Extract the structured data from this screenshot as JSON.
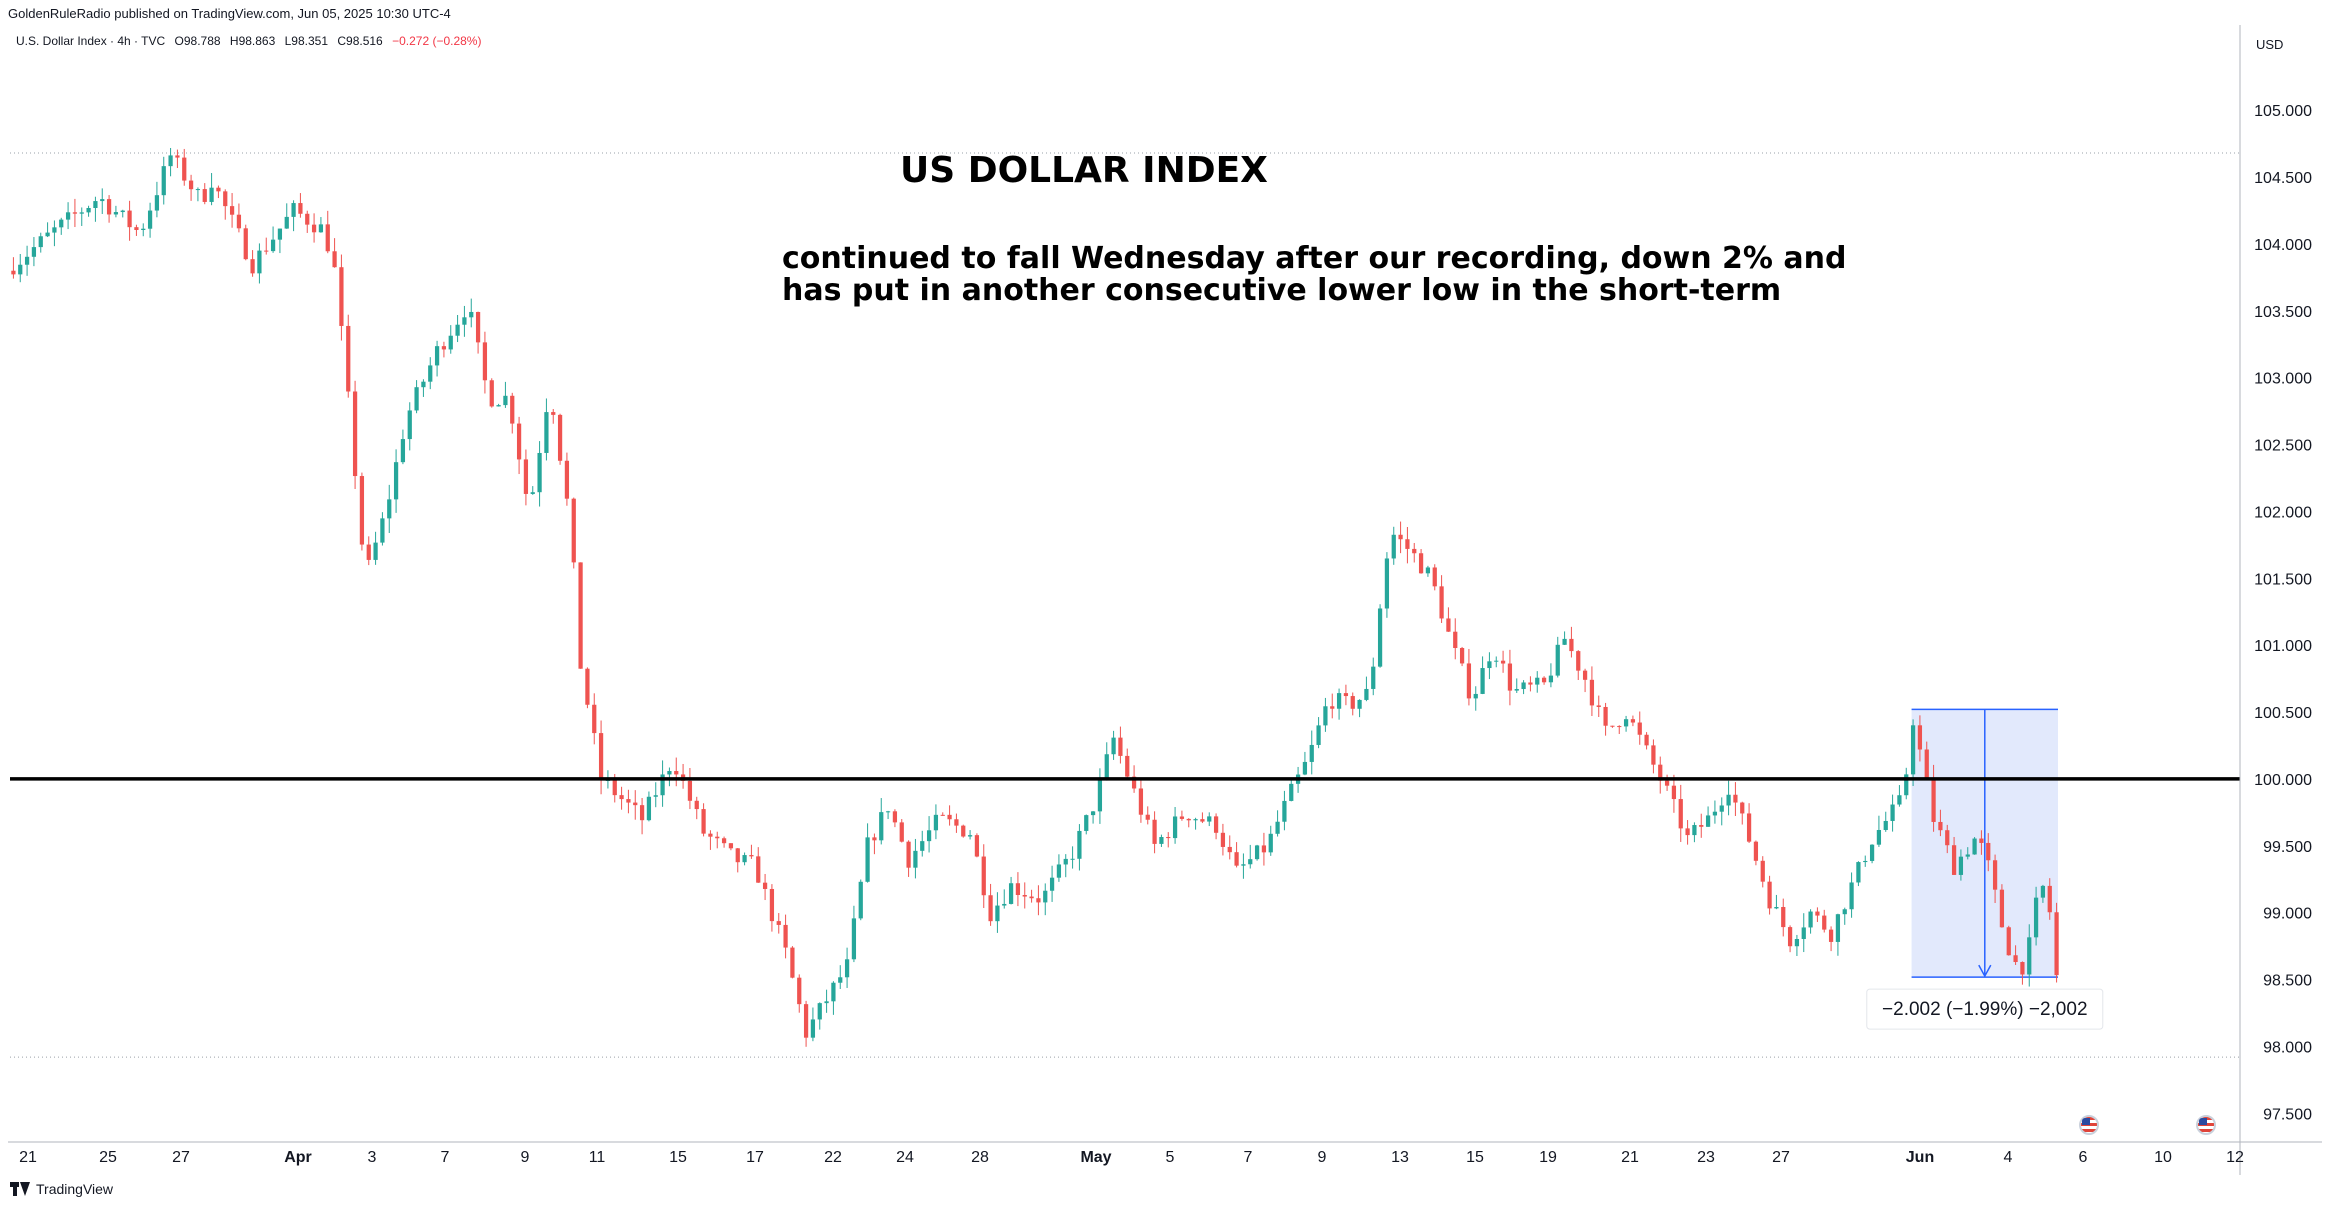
{
  "header": {
    "published_text": "GoldenRuleRadio published on TradingView.com, Jun 05, 2025 10:30 UTC-4",
    "symbol": "U.S. Dollar Index · 4h · TVC",
    "open": "O98.788",
    "high": "H98.863",
    "low": "L98.351",
    "close": "C98.516",
    "change": "−0.272 (−0.28%)"
  },
  "price_axis": {
    "currency": "USD",
    "ticks": [
      "105.000",
      "104.500",
      "104.000",
      "103.500",
      "103.000",
      "102.500",
      "102.000",
      "101.500",
      "101.000",
      "100.500",
      "100.000",
      "99.500",
      "99.000",
      "98.500",
      "98.000",
      "97.500"
    ]
  },
  "time_axis": {
    "ticks": [
      {
        "label": "21",
        "bold": false
      },
      {
        "label": "25",
        "bold": false
      },
      {
        "label": "27",
        "bold": false
      },
      {
        "label": "Apr",
        "bold": true
      },
      {
        "label": "3",
        "bold": false
      },
      {
        "label": "7",
        "bold": false
      },
      {
        "label": "9",
        "bold": false
      },
      {
        "label": "11",
        "bold": false
      },
      {
        "label": "15",
        "bold": false
      },
      {
        "label": "17",
        "bold": false
      },
      {
        "label": "22",
        "bold": false
      },
      {
        "label": "24",
        "bold": false
      },
      {
        "label": "28",
        "bold": false
      },
      {
        "label": "May",
        "bold": true
      },
      {
        "label": "5",
        "bold": false
      },
      {
        "label": "7",
        "bold": false
      },
      {
        "label": "9",
        "bold": false
      },
      {
        "label": "13",
        "bold": false
      },
      {
        "label": "15",
        "bold": false
      },
      {
        "label": "19",
        "bold": false
      },
      {
        "label": "21",
        "bold": false
      },
      {
        "label": "23",
        "bold": false
      },
      {
        "label": "27",
        "bold": false
      },
      {
        "label": "Jun",
        "bold": true
      },
      {
        "label": "4",
        "bold": false
      },
      {
        "label": "6",
        "bold": false
      },
      {
        "label": "10",
        "bold": false
      },
      {
        "label": "12",
        "bold": false
      }
    ]
  },
  "annotations": {
    "title": "US DOLLAR INDEX",
    "note_line1": "continued to fall Wednesday after our recording, down 2% and",
    "note_line2": "has put in another consecutive lower low in the short-term",
    "measure_label": "−2.002 (−1.99%) −2,002"
  },
  "footer": {
    "brand": "TradingView"
  },
  "colors": {
    "up": "#26a69a",
    "down": "#ef5350",
    "support_line": "#000000",
    "measure_fill": "#dbe4fb",
    "measure_line": "#2962ff"
  },
  "chart_data": {
    "type": "candlestick",
    "ylim": [
      97.3,
      105.6
    ],
    "support_level": 100.0,
    "range_high": 104.68,
    "range_low": 97.92,
    "measure": {
      "from": 100.52,
      "to": 98.518,
      "change": -2.002,
      "change_pct": -1.99
    },
    "anchors": [
      {
        "t": 0.0,
        "p": 103.8
      },
      {
        "t": 0.025,
        "p": 104.12
      },
      {
        "t": 0.045,
        "p": 104.35
      },
      {
        "t": 0.065,
        "p": 104.08
      },
      {
        "t": 0.08,
        "p": 104.66
      },
      {
        "t": 0.095,
        "p": 104.32
      },
      {
        "t": 0.1,
        "p": 104.48
      },
      {
        "t": 0.12,
        "p": 103.85
      },
      {
        "t": 0.14,
        "p": 104.25
      },
      {
        "t": 0.155,
        "p": 104.1
      },
      {
        "t": 0.16,
        "p": 103.8
      },
      {
        "t": 0.165,
        "p": 103.1
      },
      {
        "t": 0.175,
        "p": 101.5
      },
      {
        "t": 0.185,
        "p": 102.0
      },
      {
        "t": 0.195,
        "p": 102.7
      },
      {
        "t": 0.21,
        "p": 103.2
      },
      {
        "t": 0.225,
        "p": 103.55
      },
      {
        "t": 0.235,
        "p": 102.85
      },
      {
        "t": 0.245,
        "p": 102.85
      },
      {
        "t": 0.255,
        "p": 102.0
      },
      {
        "t": 0.265,
        "p": 102.95
      },
      {
        "t": 0.275,
        "p": 101.9
      },
      {
        "t": 0.28,
        "p": 100.85
      },
      {
        "t": 0.29,
        "p": 100.0
      },
      {
        "t": 0.3,
        "p": 99.85
      },
      {
        "t": 0.31,
        "p": 99.7
      },
      {
        "t": 0.325,
        "p": 100.15
      },
      {
        "t": 0.34,
        "p": 99.6
      },
      {
        "t": 0.355,
        "p": 99.4
      },
      {
        "t": 0.365,
        "p": 99.35
      },
      {
        "t": 0.38,
        "p": 98.7
      },
      {
        "t": 0.39,
        "p": 98.1
      },
      {
        "t": 0.4,
        "p": 98.35
      },
      {
        "t": 0.41,
        "p": 98.6
      },
      {
        "t": 0.42,
        "p": 99.5
      },
      {
        "t": 0.43,
        "p": 99.8
      },
      {
        "t": 0.44,
        "p": 99.4
      },
      {
        "t": 0.455,
        "p": 99.7
      },
      {
        "t": 0.47,
        "p": 99.6
      },
      {
        "t": 0.48,
        "p": 99.0
      },
      {
        "t": 0.49,
        "p": 99.2
      },
      {
        "t": 0.505,
        "p": 99.1
      },
      {
        "t": 0.52,
        "p": 99.45
      },
      {
        "t": 0.53,
        "p": 99.8
      },
      {
        "t": 0.54,
        "p": 100.3
      },
      {
        "t": 0.55,
        "p": 99.9
      },
      {
        "t": 0.56,
        "p": 99.5
      },
      {
        "t": 0.575,
        "p": 99.75
      },
      {
        "t": 0.59,
        "p": 99.65
      },
      {
        "t": 0.6,
        "p": 99.3
      },
      {
        "t": 0.615,
        "p": 99.5
      },
      {
        "t": 0.625,
        "p": 99.85
      },
      {
        "t": 0.635,
        "p": 100.15
      },
      {
        "t": 0.645,
        "p": 100.6
      },
      {
        "t": 0.655,
        "p": 100.55
      },
      {
        "t": 0.665,
        "p": 100.65
      },
      {
        "t": 0.67,
        "p": 101.3
      },
      {
        "t": 0.675,
        "p": 101.85
      },
      {
        "t": 0.685,
        "p": 101.7
      },
      {
        "t": 0.695,
        "p": 101.5
      },
      {
        "t": 0.705,
        "p": 101.0
      },
      {
        "t": 0.715,
        "p": 100.6
      },
      {
        "t": 0.725,
        "p": 101.0
      },
      {
        "t": 0.735,
        "p": 100.65
      },
      {
        "t": 0.75,
        "p": 100.7
      },
      {
        "t": 0.76,
        "p": 101.05
      },
      {
        "t": 0.77,
        "p": 100.75
      },
      {
        "t": 0.78,
        "p": 100.35
      },
      {
        "t": 0.79,
        "p": 100.5
      },
      {
        "t": 0.8,
        "p": 100.2
      },
      {
        "t": 0.81,
        "p": 99.9
      },
      {
        "t": 0.82,
        "p": 99.55
      },
      {
        "t": 0.83,
        "p": 99.7
      },
      {
        "t": 0.84,
        "p": 99.95
      },
      {
        "t": 0.85,
        "p": 99.55
      },
      {
        "t": 0.86,
        "p": 99.1
      },
      {
        "t": 0.87,
        "p": 98.8
      },
      {
        "t": 0.88,
        "p": 99.0
      },
      {
        "t": 0.89,
        "p": 98.85
      },
      {
        "t": 0.9,
        "p": 99.2
      },
      {
        "t": 0.91,
        "p": 99.55
      },
      {
        "t": 0.92,
        "p": 99.75
      },
      {
        "t": 0.925,
        "p": 99.85
      },
      {
        "t": 0.93,
        "p": 100.45
      },
      {
        "t": 0.94,
        "p": 99.7
      },
      {
        "t": 0.95,
        "p": 99.35
      },
      {
        "t": 0.96,
        "p": 99.55
      },
      {
        "t": 0.965,
        "p": 99.45
      },
      {
        "t": 0.975,
        "p": 98.8
      },
      {
        "t": 0.98,
        "p": 98.62
      },
      {
        "t": 0.985,
        "p": 98.6
      },
      {
        "t": 0.99,
        "p": 99.05
      },
      {
        "t": 0.995,
        "p": 99.25
      },
      {
        "t": 1.0,
        "p": 98.52
      }
    ]
  }
}
